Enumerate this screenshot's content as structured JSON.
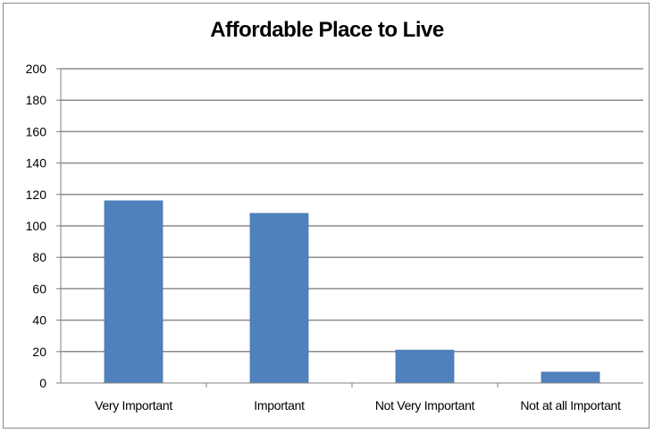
{
  "chart_data": {
    "type": "bar",
    "title": "Affordable Place to Live",
    "categories": [
      "Very Important",
      "Important",
      "Not Very Important",
      "Not at all Important"
    ],
    "values": [
      116,
      108,
      21,
      7
    ],
    "ylim": [
      0,
      200
    ],
    "yticks": [
      0,
      20,
      40,
      60,
      80,
      100,
      120,
      140,
      160,
      180,
      200
    ],
    "grid": true,
    "legend": "none",
    "colors": {
      "bar": "#4f81bd",
      "bar_edge": "#3b6ea8",
      "grid": "#8c8c8c",
      "axis": "#808080",
      "text": "#000000"
    }
  }
}
